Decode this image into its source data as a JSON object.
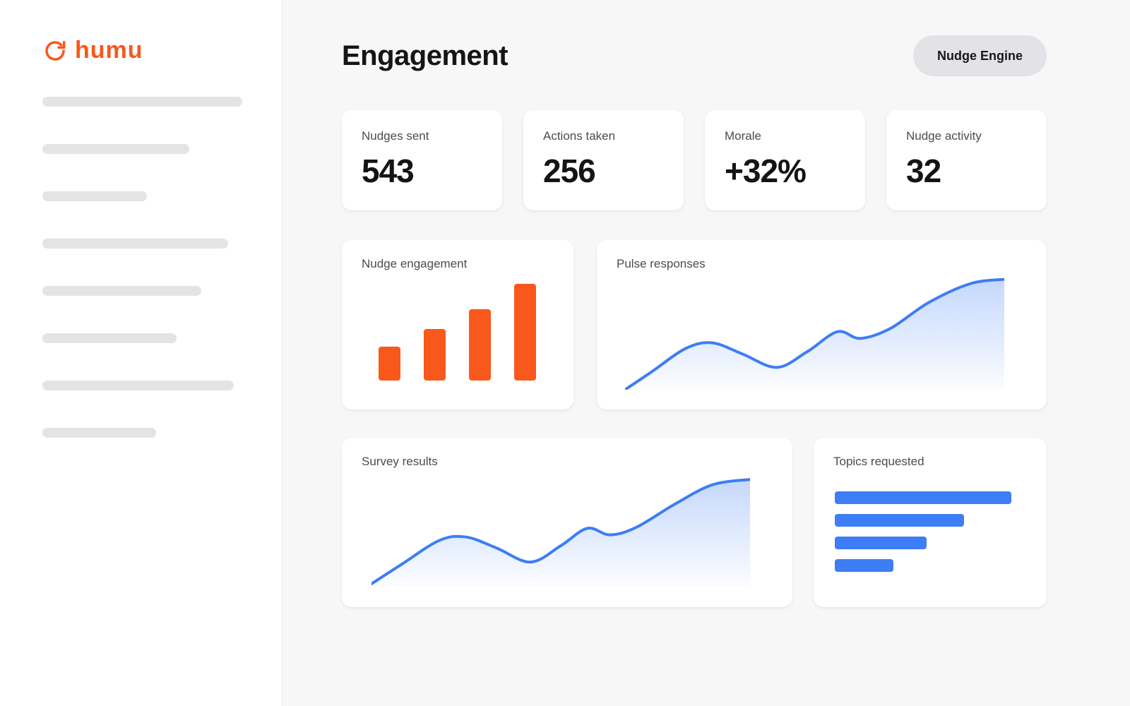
{
  "brand": {
    "name": "humu"
  },
  "colors": {
    "accent_orange": "#F9581D",
    "accent_blue": "#3D7DF5",
    "page_bg": "#F7F7F8",
    "card_bg": "#FFFFFF",
    "button_bg": "#E3E3E7",
    "skeleton_gray": "#E4E4E7"
  },
  "sidebar": {
    "skeleton_widths": [
      283,
      208,
      148,
      263,
      225,
      190,
      271,
      161
    ]
  },
  "header": {
    "title": "Engagement",
    "nudge_engine_button": "Nudge Engine"
  },
  "stats": [
    {
      "label": "Nudges sent",
      "value": "543"
    },
    {
      "label": "Actions taken",
      "value": "256"
    },
    {
      "label": "Morale",
      "value": "+32%"
    },
    {
      "label": "Nudge activity",
      "value": "32"
    }
  ],
  "chart_data": [
    {
      "name": "Nudge engagement",
      "type": "bar",
      "categories": [
        "1",
        "2",
        "3",
        "4"
      ],
      "values": [
        34,
        52,
        72,
        98
      ],
      "value_unit": "relative height %",
      "color": "#F9581D",
      "legend": "none",
      "axes": "none"
    },
    {
      "name": "Pulse responses",
      "type": "area",
      "points": [
        [
          0,
          100
        ],
        [
          7,
          84
        ],
        [
          16,
          63
        ],
        [
          23,
          58
        ],
        [
          31,
          68
        ],
        [
          40,
          80
        ],
        [
          48,
          66
        ],
        [
          56,
          48
        ],
        [
          62,
          54
        ],
        [
          70,
          45
        ],
        [
          80,
          22
        ],
        [
          91,
          5
        ],
        [
          100,
          1
        ]
      ],
      "point_format": "[x %, y % from top] upward trend with two humps",
      "color": "#3D7DF5",
      "fill": "vertical gradient blue to transparent",
      "legend": "none",
      "axes": "none"
    },
    {
      "name": "Survey results",
      "type": "area",
      "points": [
        [
          0,
          98
        ],
        [
          8,
          80
        ],
        [
          18,
          58
        ],
        [
          25,
          55
        ],
        [
          33,
          65
        ],
        [
          42,
          78
        ],
        [
          50,
          63
        ],
        [
          57,
          47
        ],
        [
          63,
          53
        ],
        [
          70,
          46
        ],
        [
          80,
          25
        ],
        [
          90,
          7
        ],
        [
          100,
          2
        ]
      ],
      "point_format": "[x %, y % from top] upward trend with two humps",
      "color": "#3D7DF5",
      "fill": "vertical gradient blue to transparent",
      "legend": "none",
      "axes": "none"
    },
    {
      "name": "Topics requested",
      "type": "horizontal-bar",
      "categories": [
        "1",
        "2",
        "3",
        "4"
      ],
      "values": [
        100,
        73,
        52,
        33
      ],
      "value_unit": "relative width %",
      "color": "#3D7DF5",
      "legend": "none",
      "axes": "none"
    }
  ]
}
